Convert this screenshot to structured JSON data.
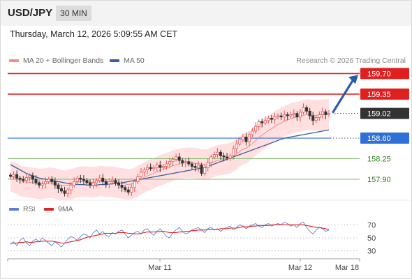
{
  "header": {
    "pair": "USD/JPY",
    "timeframe": "30 MIN"
  },
  "timestamp": "Thursday, March 12, 2026 5:09:55 AM CET",
  "legend": {
    "ma20": {
      "label": "MA 20 + Bollinger Bands",
      "color": "#f08c8c"
    },
    "ma50": {
      "label": "MA 50",
      "color": "#3a5f9e"
    }
  },
  "copyright": "Research © 2026 Trading Central",
  "price_levels": [
    {
      "value": 159.7,
      "label": "159.70",
      "kind": "resistance"
    },
    {
      "value": 159.35,
      "label": "159.35",
      "kind": "resistance"
    },
    {
      "value": 159.02,
      "label": "159.02",
      "kind": "last"
    },
    {
      "value": 158.6,
      "label": "158.60",
      "kind": "pivot"
    },
    {
      "value": 158.25,
      "label": "158.25",
      "kind": "support"
    },
    {
      "value": 157.9,
      "label": "157.90",
      "kind": "support"
    }
  ],
  "colors": {
    "resistance": "#e02020",
    "last": "#333333",
    "pivot": "#2f6fd8",
    "support": "#7fbf6a",
    "support_text": "#2e7d1e",
    "bull": "#e45656",
    "bear": "#333333",
    "band": "#ffd9d9",
    "arrow": "#2b5aa8",
    "rsi": "#5b7fd6",
    "rsi_ma": "#e02020"
  },
  "rsi_panel": {
    "legend": [
      {
        "label": "RSI",
        "color": "#5b7fd6"
      },
      {
        "label": "9MA",
        "color": "#e02020"
      }
    ],
    "levels": [
      {
        "value": 70,
        "label": "70"
      },
      {
        "value": 50,
        "label": "50"
      },
      {
        "value": 30,
        "label": "30"
      }
    ]
  },
  "x_axis": {
    "labels": [
      "Mar 11",
      "Mar 12",
      "Mar 18"
    ]
  },
  "chart_data": {
    "type": "candlestick",
    "ylim": [
      157.52,
      159.8
    ],
    "close_series": [
      157.95,
      157.98,
      157.92,
      157.9,
      157.88,
      157.93,
      157.96,
      157.9,
      157.84,
      157.8,
      157.82,
      157.86,
      157.9,
      157.86,
      157.8,
      157.74,
      157.7,
      157.66,
      157.72,
      157.8,
      157.86,
      157.92,
      157.9,
      157.88,
      157.84,
      157.8,
      157.84,
      157.88,
      157.92,
      157.86,
      157.82,
      157.86,
      157.88,
      157.84,
      157.8,
      157.76,
      157.72,
      157.68,
      157.76,
      157.86,
      157.94,
      158.02,
      158.06,
      158.1,
      158.08,
      158.1,
      158.14,
      158.1,
      158.12,
      158.16,
      158.2,
      158.24,
      158.28,
      158.22,
      158.18,
      158.2,
      158.16,
      158.12,
      158.1,
      158.14,
      158.0,
      158.1,
      158.18,
      158.28,
      158.32,
      158.36,
      158.3,
      158.28,
      158.26,
      158.3,
      158.42,
      158.5,
      158.58,
      158.62,
      158.54,
      158.66,
      158.72,
      158.8,
      158.88,
      158.86,
      158.9,
      158.94,
      158.92,
      158.96,
      158.98,
      158.96,
      159.0,
      158.98,
      159.0,
      159.02,
      158.96,
      159.04,
      159.12,
      159.06,
      158.98,
      158.9,
      158.95,
      159.0,
      159.05,
      159.0,
      159.02
    ],
    "ma20": [
      157.95,
      157.93,
      157.91,
      157.88,
      157.86,
      157.85,
      157.85,
      157.84,
      157.83,
      157.82,
      157.82,
      157.83,
      157.84,
      157.84,
      157.83,
      157.81,
      157.8,
      157.79,
      157.8,
      157.81,
      157.83,
      157.85,
      157.86,
      157.86,
      157.86,
      157.85,
      157.85,
      157.86,
      157.87,
      157.87,
      157.86,
      157.86,
      157.86,
      157.85,
      157.84,
      157.83,
      157.82,
      157.81,
      157.82,
      157.84,
      157.87,
      157.9,
      157.93,
      157.96,
      157.98,
      158.0,
      158.03,
      158.05,
      158.07,
      158.09,
      158.11,
      158.13,
      158.15,
      158.16,
      158.17,
      158.18,
      158.18,
      158.18,
      158.17,
      158.17,
      158.15,
      158.15,
      158.16,
      158.18,
      158.2,
      158.22,
      158.23,
      158.24,
      158.25,
      158.26,
      158.29,
      158.33,
      158.37,
      158.41,
      158.43,
      158.47,
      158.51,
      158.56,
      158.61,
      158.65,
      158.69,
      158.73,
      158.76,
      158.8,
      158.83,
      158.86,
      158.89,
      158.91,
      158.93,
      158.95,
      158.96,
      158.97,
      158.99,
      159.0,
      159.0,
      158.99,
      158.99,
      158.99,
      159.0,
      159.0,
      159.01
    ],
    "ma50": [
      158.15,
      158.12,
      158.09,
      158.06,
      158.03,
      158.0,
      157.98,
      157.96,
      157.94,
      157.92,
      157.91,
      157.9,
      157.89,
      157.88,
      157.87,
      157.86,
      157.85,
      157.84,
      157.83,
      157.82,
      157.82,
      157.81,
      157.81,
      157.81,
      157.8,
      157.8,
      157.8,
      157.8,
      157.81,
      157.81,
      157.81,
      157.82,
      157.82,
      157.83,
      157.83,
      157.84,
      157.85,
      157.86,
      157.87,
      157.88,
      157.89,
      157.9,
      157.91,
      157.92,
      157.93,
      157.94,
      157.95,
      157.96,
      157.97,
      157.98,
      157.99,
      158.0,
      158.01,
      158.02,
      158.03,
      158.04,
      158.05,
      158.06,
      158.07,
      158.08,
      158.09,
      158.1,
      158.12,
      158.14,
      158.16,
      158.18,
      158.2,
      158.22,
      158.24,
      158.26,
      158.28,
      158.3,
      158.32,
      158.34,
      158.36,
      158.38,
      158.4,
      158.42,
      158.44,
      158.46,
      158.48,
      158.5,
      158.52,
      158.54,
      158.56,
      158.58,
      158.6,
      158.61,
      158.62,
      158.63,
      158.64,
      158.65,
      158.66,
      158.67,
      158.68,
      158.69,
      158.7,
      158.71,
      158.72,
      158.73,
      158.74
    ],
    "bb_width": 0.26,
    "projection_target": 159.7
  },
  "rsi_data": {
    "ylim": [
      20,
      80
    ],
    "rsi": [
      40,
      44,
      38,
      46,
      50,
      42,
      38,
      45,
      48,
      44,
      50,
      46,
      42,
      38,
      44,
      40,
      36,
      42,
      48,
      52,
      50,
      46,
      52,
      56,
      54,
      50,
      58,
      62,
      56,
      60,
      54,
      52,
      58,
      56,
      60,
      62,
      56,
      50,
      54,
      58,
      60,
      56,
      62,
      64,
      58,
      54,
      60,
      64,
      58,
      52,
      50,
      58,
      62,
      66,
      60,
      56,
      58,
      62,
      64,
      66,
      62,
      58,
      64,
      66,
      62,
      64,
      60,
      64,
      66,
      68,
      62,
      66,
      70,
      68,
      64,
      68,
      70,
      72,
      68,
      66,
      70,
      72,
      68,
      70,
      72,
      70,
      74,
      72,
      68,
      70,
      66,
      72,
      74,
      66,
      60,
      56,
      62,
      66,
      64,
      60,
      62
    ],
    "ma9": [
      42,
      42,
      42,
      43,
      43,
      44,
      43,
      43,
      44,
      44,
      45,
      45,
      45,
      45,
      44,
      43,
      42,
      42,
      43,
      44,
      45,
      46,
      47,
      49,
      51,
      52,
      53,
      54,
      55,
      56,
      57,
      57,
      57,
      57,
      58,
      58,
      58,
      57,
      57,
      56,
      56,
      57,
      58,
      59,
      59,
      59,
      59,
      60,
      60,
      59,
      58,
      58,
      58,
      59,
      59,
      60,
      60,
      61,
      61,
      62,
      62,
      62,
      63,
      63,
      63,
      63,
      64,
      64,
      64,
      65,
      65,
      65,
      66,
      67,
      67,
      67,
      68,
      68,
      69,
      69,
      69,
      69,
      70,
      70,
      70,
      70,
      70,
      70,
      70,
      70,
      70,
      70,
      70,
      69,
      68,
      67,
      66,
      66,
      65,
      64,
      63
    ]
  }
}
